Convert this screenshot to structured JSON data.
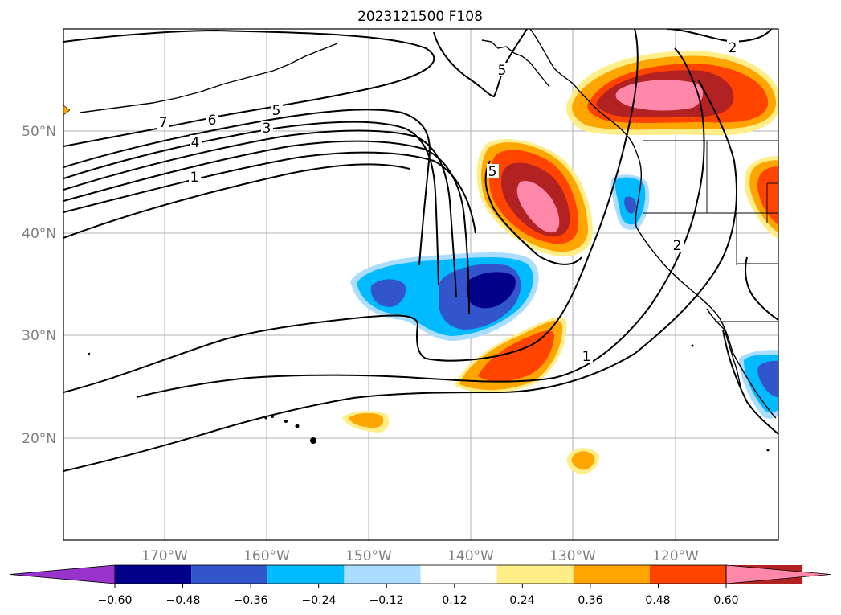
{
  "title": "2023121500 F108",
  "lat_labels": [
    "50°N",
    "40°N",
    "30°N",
    "20°N"
  ],
  "lon_labels": [
    "170°W",
    "160°W",
    "150°W",
    "140°W",
    "130°W",
    "120°W"
  ],
  "colorbar": {
    "tick_labels": [
      "−0.60",
      "−0.48",
      "−0.36",
      "−0.24",
      "−0.12",
      "0.12",
      "0.24",
      "0.36",
      "0.48",
      "0.60"
    ],
    "colors": [
      "#9933cc",
      "#000088",
      "#3355cc",
      "#00bbff",
      "#aaddff",
      "#ffffff",
      "#ffee88",
      "#ffa500",
      "#ff4400",
      "#b22222",
      "#ff88aa"
    ]
  },
  "contour_labels": [
    "7",
    "6",
    "5",
    "4",
    "3",
    "1",
    "5",
    "5",
    "2",
    "2",
    "1"
  ]
}
